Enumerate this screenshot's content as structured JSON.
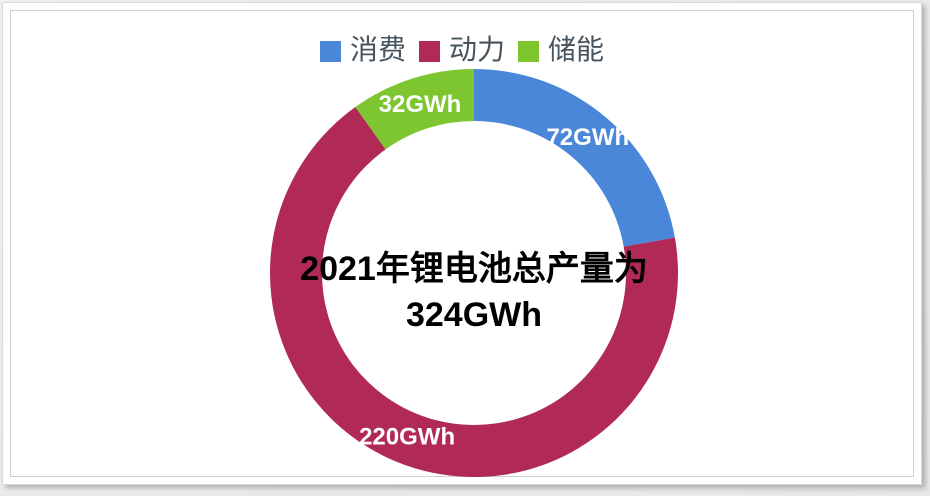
{
  "chart_data": {
    "type": "pie",
    "subtype": "donut",
    "direction": "clockwise",
    "start_angle_deg": 0,
    "inner_radius_ratio": 0.75,
    "total": 324,
    "legend_position": "top",
    "categories": [
      "消费",
      "动力",
      "储能"
    ],
    "series": [
      {
        "name": "消费",
        "value": 72,
        "label": "72GWh",
        "color": "#4a87d8"
      },
      {
        "name": "动力",
        "value": 220,
        "label": "220GWh",
        "color": "#b02a55"
      },
      {
        "name": "储能",
        "value": 32,
        "label": "32GWh",
        "color": "#7dc62f"
      }
    ],
    "center_text": {
      "line1": "2021年锂电池总产量为",
      "line2": "324GWh"
    },
    "label_color": "#ffffff",
    "center_text_color": "#000000",
    "legend_text_color": "#47545e"
  }
}
